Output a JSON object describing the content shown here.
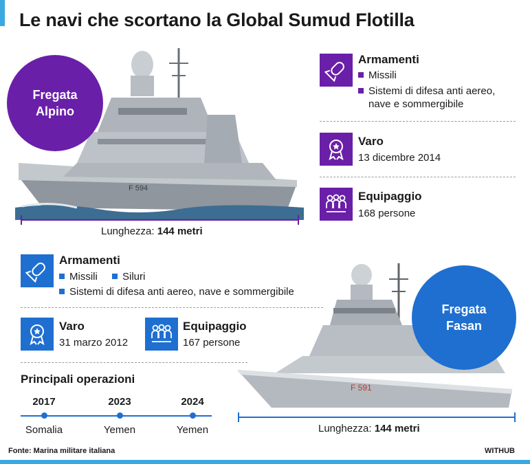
{
  "title": "Le navi che scortano la Global Sumud Flotilla",
  "colors": {
    "purple": "#6a1fa8",
    "blue": "#1e6fd0",
    "accent": "#3aa9e0"
  },
  "alpino": {
    "name_line1": "Fregata",
    "name_line2": "Alpino",
    "hull_number": "F 594",
    "length_label": "Lunghezza:",
    "length_value": "144 metri",
    "armamenti": {
      "icon": "missile-icon",
      "title": "Armamenti",
      "items": [
        "Missili",
        "Sistemi di difesa anti aereo,",
        "nave e sommergibile"
      ]
    },
    "varo": {
      "icon": "medal-icon",
      "title": "Varo",
      "value": "13 dicembre 2014"
    },
    "equipaggio": {
      "icon": "crew-icon",
      "title": "Equipaggio",
      "value": "168 persone"
    }
  },
  "fasan": {
    "name_line1": "Fregata",
    "name_line2": "Fasan",
    "hull_number": "F 591",
    "length_label": "Lunghezza:",
    "length_value": "144 metri",
    "armamenti": {
      "icon": "missile-icon",
      "title": "Armamenti",
      "items": [
        "Missili",
        "Siluri",
        "Sistemi di difesa anti aereo, nave e sommergibile"
      ]
    },
    "varo": {
      "icon": "medal-icon",
      "title": "Varo",
      "value": "31 marzo 2012"
    },
    "equipaggio": {
      "icon": "crew-icon",
      "title": "Equipaggio",
      "value": "167 persone"
    },
    "operazioni": {
      "title": "Principali operazioni",
      "items": [
        {
          "year": "2017",
          "place": "Somalia"
        },
        {
          "year": "2023",
          "place": "Yemen"
        },
        {
          "year": "2024",
          "place": "Yemen"
        }
      ]
    }
  },
  "footer": {
    "source": "Fonte: Marina militare italiana",
    "brand": "WITHUB"
  }
}
